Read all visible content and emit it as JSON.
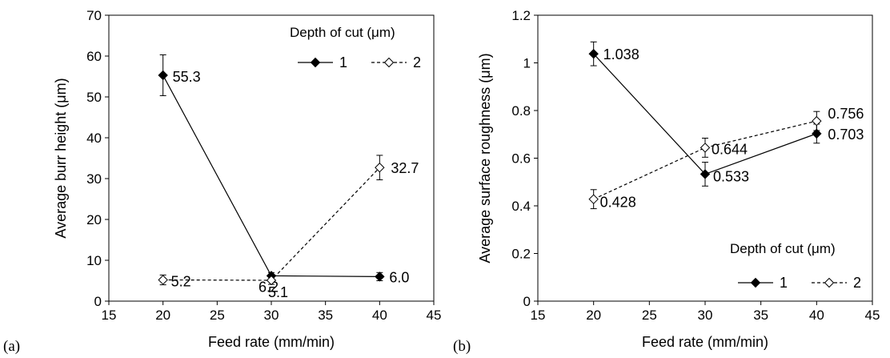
{
  "panels": [
    "(a)",
    "(b)"
  ],
  "chart_data": [
    {
      "type": "line",
      "panel": "(a)",
      "title": "",
      "xlabel": "Feed rate (mm/min)",
      "ylabel": "Average burr height (μm)",
      "xlim": [
        15,
        45
      ],
      "ylim": [
        0,
        70
      ],
      "xticks": [
        "15",
        "20",
        "25",
        "30",
        "35",
        "40",
        "45"
      ],
      "yticks": [
        "0",
        "10",
        "20",
        "30",
        "40",
        "50",
        "60",
        "70"
      ],
      "grid": false,
      "legend": {
        "title": "Depth of cut (μm)",
        "placement": "top-right"
      },
      "x": [
        20,
        30,
        40
      ],
      "series": [
        {
          "name": "1",
          "style": "solid",
          "marker": "filled-diamond",
          "values": [
            55.3,
            6.2,
            6.0
          ],
          "errors": [
            5.0,
            0.8,
            1.0
          ],
          "labels": [
            "55.3",
            "6.2",
            "6.0"
          ]
        },
        {
          "name": "2",
          "style": "dashed",
          "marker": "open-diamond",
          "values": [
            5.2,
            5.1,
            32.7
          ],
          "errors": [
            1.2,
            1.0,
            3.0
          ],
          "labels": [
            "5.2",
            "5.1",
            "32.7"
          ]
        }
      ]
    },
    {
      "type": "line",
      "panel": "(b)",
      "title": "",
      "xlabel": "Feed rate (mm/min)",
      "ylabel": "Average surface roughness (μm)",
      "xlim": [
        15,
        45
      ],
      "ylim": [
        0,
        1.2
      ],
      "xticks": [
        "15",
        "20",
        "25",
        "30",
        "35",
        "40",
        "45"
      ],
      "yticks": [
        "0",
        "0.2",
        "0.4",
        "0.6",
        "0.8",
        "1",
        "1.2"
      ],
      "grid": false,
      "legend": {
        "title": "Depth of cut (μm)",
        "placement": "bottom-right"
      },
      "x": [
        20,
        30,
        40
      ],
      "series": [
        {
          "name": "1",
          "style": "solid",
          "marker": "filled-diamond",
          "values": [
            1.038,
            0.533,
            0.703
          ],
          "errors": [
            0.05,
            0.05,
            0.04
          ],
          "labels": [
            "1.038",
            "0.533",
            "0.703"
          ]
        },
        {
          "name": "2",
          "style": "dashed",
          "marker": "open-diamond",
          "values": [
            0.428,
            0.644,
            0.756
          ],
          "errors": [
            0.04,
            0.04,
            0.04
          ],
          "labels": [
            "0.428",
            "0.644",
            "0.756"
          ]
        }
      ]
    }
  ]
}
